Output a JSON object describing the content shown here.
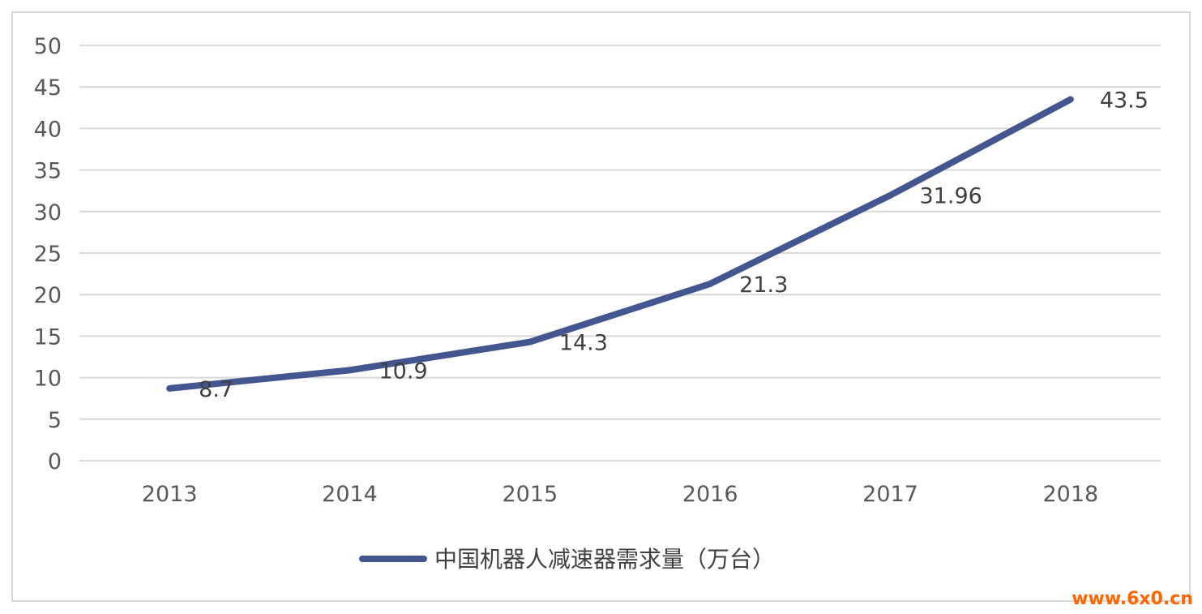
{
  "chart_data": {
    "type": "line",
    "title": "",
    "xlabel": "",
    "ylabel": "",
    "categories": [
      "2013",
      "2014",
      "2015",
      "2016",
      "2017",
      "2018"
    ],
    "series": [
      {
        "name": "中国机器人减速器需求量（万台）",
        "values": [
          8.7,
          10.9,
          14.3,
          21.3,
          31.96,
          43.5
        ],
        "labels": [
          "8.7",
          "10.9",
          "14.3",
          "21.3",
          "31.96",
          "43.5"
        ],
        "color": "#44568F"
      }
    ],
    "ylim": [
      0,
      50
    ],
    "yticks": [
      "0",
      "5",
      "10",
      "15",
      "20",
      "25",
      "30",
      "35",
      "40",
      "45",
      "50"
    ],
    "grid": true,
    "legend": "bottom-center"
  },
  "watermark": {
    "text": "www.6x0.cn",
    "color": "#ff6600"
  },
  "colors": {
    "grid": "#d9d9d9",
    "frame": "#d9d9d9"
  }
}
